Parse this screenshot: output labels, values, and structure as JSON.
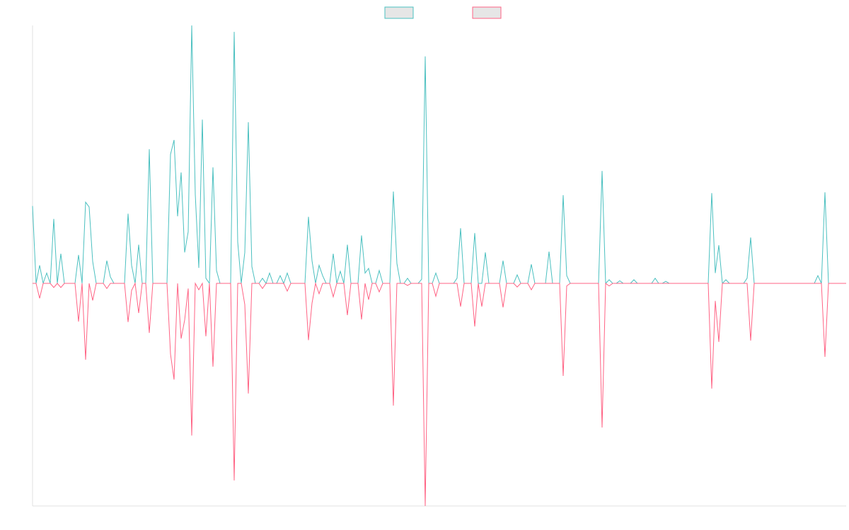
{
  "chart_data": {
    "type": "line",
    "ylim": [
      -86.3,
      100
    ],
    "grid": false,
    "legend": "top",
    "series": [
      {
        "color": "#4bc0c0",
        "values": [
          30,
          0,
          7,
          0,
          4,
          0,
          25,
          0,
          11.5,
          0,
          0,
          0,
          0,
          11,
          0,
          31.5,
          29.6,
          8.5,
          0,
          0,
          0,
          8.8,
          2.5,
          0,
          0,
          0,
          0,
          27,
          7,
          0,
          15,
          0,
          0,
          52,
          0,
          0,
          0,
          0,
          0,
          50,
          55.6,
          26,
          43,
          12,
          20,
          100,
          34.5,
          6,
          63.5,
          2,
          0,
          45,
          5,
          0,
          0,
          0,
          0,
          97.5,
          16,
          0,
          12,
          62.5,
          6.5,
          0,
          0,
          2,
          0,
          4,
          0,
          0,
          3,
          0,
          4,
          0,
          0,
          0,
          0,
          0,
          25.8,
          8.8,
          0,
          7,
          3,
          0,
          0,
          11.5,
          0,
          4.7,
          0,
          15,
          0,
          0,
          0,
          18.6,
          4,
          5.8,
          0,
          0,
          5,
          0,
          0,
          0,
          35.6,
          7.7,
          0,
          0,
          2,
          0,
          0,
          0,
          1.6,
          88,
          0,
          0,
          4,
          0,
          0,
          0,
          0,
          0,
          2,
          21.4,
          0,
          0,
          0,
          19.5,
          0,
          0,
          12,
          0,
          0,
          0,
          0,
          8.8,
          0,
          0,
          0,
          3.3,
          0,
          0,
          0,
          7.4,
          0,
          0,
          0,
          0,
          12.3,
          0,
          0,
          0,
          34.2,
          3,
          0,
          0,
          0,
          0,
          0,
          0,
          0,
          0,
          0,
          43.6,
          0,
          1.4,
          0,
          0,
          1,
          0,
          0,
          0,
          1.4,
          0,
          0,
          0,
          0,
          0,
          2,
          0,
          0,
          0.8,
          0,
          0,
          0,
          0,
          0,
          0,
          0,
          0,
          0,
          0,
          0,
          0,
          35,
          4,
          14.8,
          0,
          1.4,
          0,
          0,
          0,
          0,
          0,
          2,
          17.8,
          0,
          0,
          0,
          0,
          0,
          0,
          0,
          0,
          0,
          0,
          0,
          0,
          0,
          0,
          0,
          0,
          0,
          0,
          3,
          0,
          35.3,
          0,
          0,
          0,
          0,
          0,
          0
        ]
      },
      {
        "color": "#ff6384",
        "values": [
          0,
          0,
          -5.8,
          0,
          0,
          0,
          -1.6,
          0,
          -1.6,
          0,
          0,
          0,
          0,
          -14.8,
          0,
          -29.6,
          0,
          -6.6,
          0,
          0,
          0,
          -2,
          0,
          0,
          0,
          0,
          0,
          -15,
          -2.7,
          0,
          -11.5,
          0,
          0,
          -19.2,
          0,
          0,
          0,
          0,
          0,
          -27.4,
          -37.3,
          0,
          -21.4,
          -14.2,
          -2,
          -59,
          0,
          -2.5,
          0,
          -20.5,
          0,
          -32.3,
          0,
          0,
          0,
          0,
          0,
          -76.4,
          0,
          0,
          -8.2,
          -42.7,
          0,
          0,
          0,
          -2,
          0,
          0,
          0,
          0,
          0,
          0,
          -3,
          0,
          0,
          0,
          0,
          0,
          -22,
          -7.7,
          0,
          -4,
          0,
          0,
          0,
          -5.2,
          0,
          0,
          0,
          -12.3,
          0,
          0,
          0,
          -14,
          0,
          -6.3,
          0,
          0,
          -3.3,
          0,
          0,
          0,
          -47.4,
          0,
          0,
          0,
          -0.8,
          0,
          0,
          0,
          0,
          -86.3,
          0,
          0,
          -5,
          0,
          0,
          0,
          0,
          0,
          0,
          -9,
          0,
          0,
          0,
          -16.7,
          0,
          -9,
          0,
          0,
          0,
          0,
          0,
          -9.3,
          0,
          0,
          0,
          -1.4,
          0,
          0,
          0,
          -2.5,
          0,
          0,
          0,
          0,
          0,
          0,
          0,
          0,
          -35.9,
          -1,
          0,
          0,
          0,
          0,
          0,
          0,
          0,
          0,
          0,
          -55.9,
          0,
          -1,
          0,
          0,
          0,
          0,
          0,
          0,
          0,
          0,
          0,
          0,
          0,
          0,
          0,
          0,
          0,
          0,
          0,
          0,
          0,
          0,
          0,
          0,
          0,
          0,
          0,
          0,
          0,
          0,
          -40.8,
          -6.8,
          -22.7,
          0,
          0,
          0,
          0,
          0,
          0,
          0,
          0,
          -22.2,
          0,
          0,
          0,
          0,
          0,
          0,
          0,
          0,
          0,
          0,
          0,
          0,
          0,
          0,
          0,
          0,
          0,
          0,
          0,
          0,
          -28.5,
          0,
          0,
          0,
          0,
          0,
          0
        ]
      }
    ]
  }
}
